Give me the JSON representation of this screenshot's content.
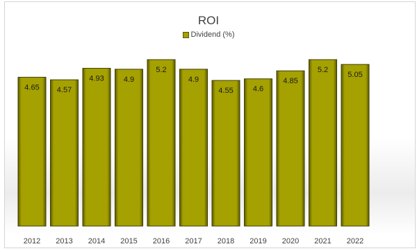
{
  "chart_data": {
    "type": "bar",
    "title": "ROI",
    "categories": [
      "2012",
      "2013",
      "2014",
      "2015",
      "2016",
      "2017",
      "2018",
      "2019",
      "2020",
      "2021",
      "2022"
    ],
    "series": [
      {
        "name": "Dividend (%)",
        "values": [
          4.65,
          4.57,
          4.93,
          4.9,
          5.2,
          4.9,
          4.55,
          4.6,
          4.85,
          5.2,
          5.05
        ]
      }
    ],
    "data_labels": [
      "4.65",
      "4.57",
      "4.93",
      "4.9",
      "5.2",
      "4.9",
      "4.55",
      "4.6",
      "4.85",
      "5.2",
      "5.05"
    ],
    "xlabel": "",
    "ylabel": "",
    "ylim": [
      0,
      5.2
    ],
    "grid": false,
    "legend": "top-center",
    "bar_color": "#a5a100",
    "bar_dark": "#5c5a00"
  }
}
